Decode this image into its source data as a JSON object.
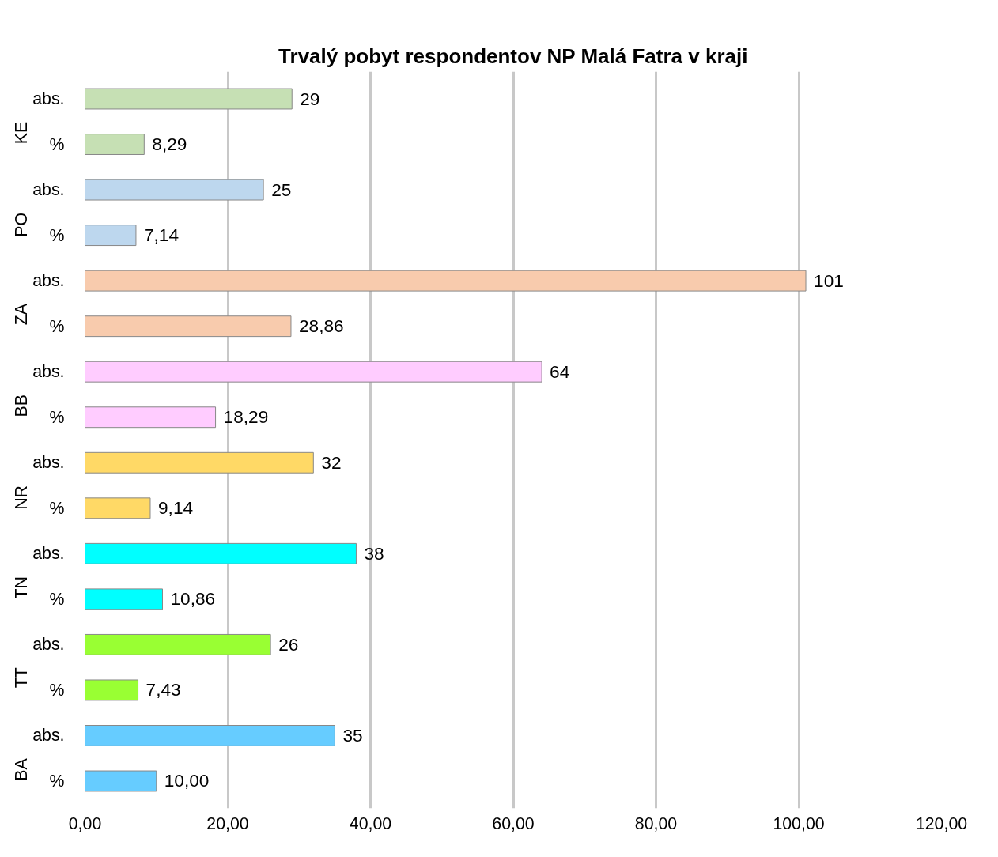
{
  "chart_data": {
    "type": "bar",
    "orientation": "horizontal",
    "title": "Trvalý pobyt respondentov NP Malá Fatra v kraji",
    "categories": [
      "abs.",
      "%",
      "abs.",
      "%",
      "abs.",
      "%",
      "abs.",
      "%",
      "abs.",
      "%",
      "abs.",
      "%",
      "abs.",
      "%",
      "abs.",
      "%"
    ],
    "values": [
      29,
      8.29,
      25,
      7.14,
      101,
      28.86,
      64,
      18.29,
      32,
      9.14,
      38,
      10.86,
      26,
      7.43,
      35,
      10.0
    ],
    "value_labels": [
      "29",
      "8,29",
      "25",
      "7,14",
      "101",
      "28,86",
      "64",
      "18,29",
      "32",
      "9,14",
      "38",
      "10,86",
      "26",
      "7,43",
      "35",
      "10,00"
    ],
    "colors": [
      "#c6e0b4",
      "#c6e0b4",
      "#bdd7ee",
      "#bdd7ee",
      "#f8cbad",
      "#f8cbad",
      "#ffccff",
      "#ffccff",
      "#ffd966",
      "#ffd966",
      "#00ffff",
      "#00ffff",
      "#99ff33",
      "#99ff33",
      "#66ccff",
      "#66ccff"
    ],
    "annotations": [
      "KE",
      "PO",
      "ZA",
      "BB",
      "NR",
      "TN",
      "TT",
      "BA"
    ],
    "xlim": [
      0,
      120
    ],
    "xticks": [
      {
        "value": 0,
        "label": "0,00"
      },
      {
        "value": 20,
        "label": "20,00"
      },
      {
        "value": 40,
        "label": "40,00"
      },
      {
        "value": 60,
        "label": "60,00"
      },
      {
        "value": 80,
        "label": "80,00"
      },
      {
        "value": 100,
        "label": "100,00"
      },
      {
        "value": 120,
        "label": "120,00"
      }
    ],
    "grid": "x"
  }
}
